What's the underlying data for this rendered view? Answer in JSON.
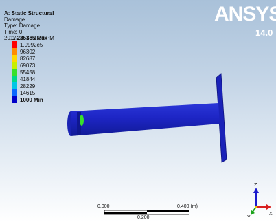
{
  "info": {
    "title": "A: Static Structural",
    "result": "Damage",
    "type": "Type: Damage",
    "time": "Time: 0",
    "date": "2017-06-13 1:30 PM"
  },
  "brand": {
    "logo": "ANSYS",
    "version": "14.0"
  },
  "legend": {
    "max_label": "1.2353e5 Max",
    "items": [
      {
        "label": "1.0992e5",
        "color": "#ff0000"
      },
      {
        "label": "96302",
        "color": "#ff8c00"
      },
      {
        "label": "82687",
        "color": "#ffd800"
      },
      {
        "label": "69073",
        "color": "#c7ef00"
      },
      {
        "label": "55458",
        "color": "#38e02c"
      },
      {
        "label": "41844",
        "color": "#00d88a"
      },
      {
        "label": "28229",
        "color": "#00c6e6"
      },
      {
        "label": "14615",
        "color": "#0a68ff"
      },
      {
        "label": "1000 Min",
        "color": "#0000c8"
      }
    ]
  },
  "scale": {
    "left": "0.000",
    "right": "0.400 (m)",
    "mid": "0.200"
  },
  "axes": {
    "z": "Z",
    "x": "X",
    "y": "Y"
  },
  "colors": {
    "model": "#1d25c4",
    "hotspot": "#38e02c"
  }
}
